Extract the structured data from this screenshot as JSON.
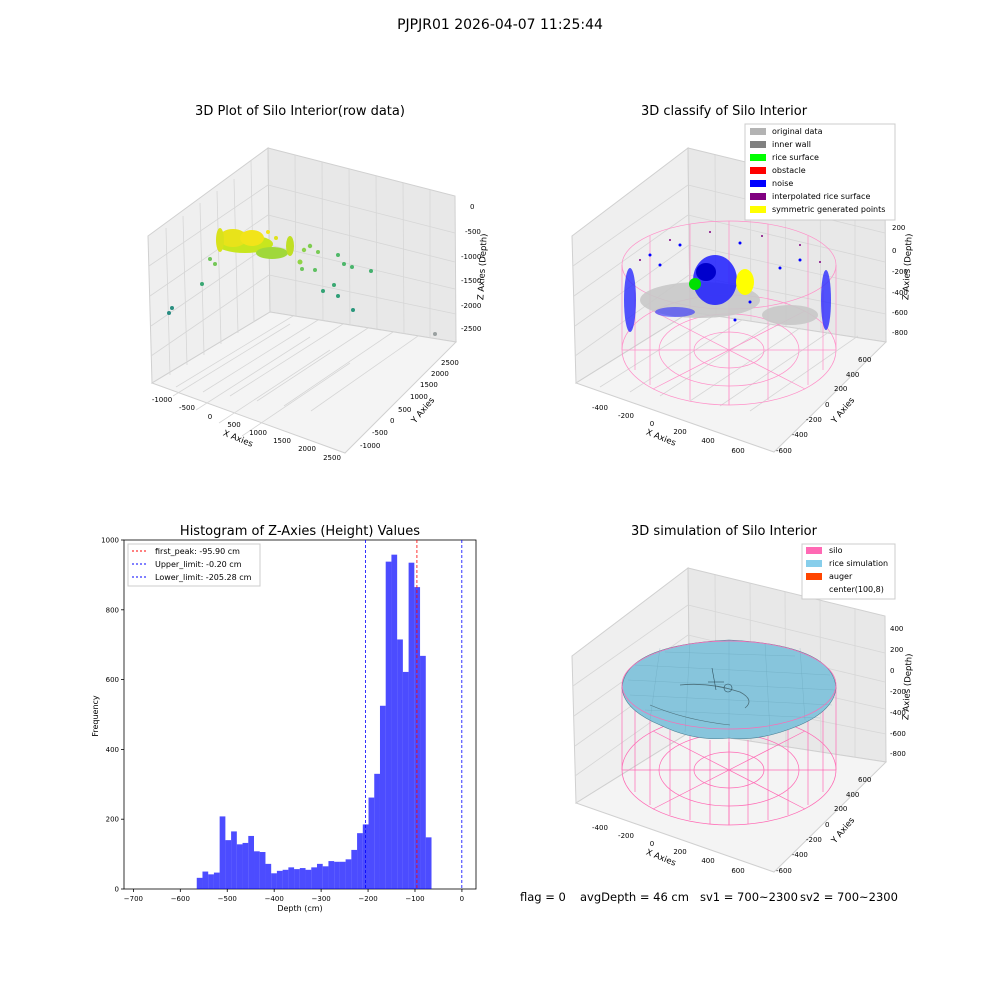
{
  "figure": {
    "suptitle": "PJPJR01 2026-04-07 11:25:44"
  },
  "panels": {
    "raw": {
      "title": "3D Plot of Silo Interior(row data)",
      "xlabel": "X Axies",
      "ylabel": "Y Axies",
      "zlabel": "Z Axies (Depth)",
      "x_ticks": [
        "-1000",
        "-500",
        "0",
        "500",
        "1000",
        "1500",
        "2000",
        "2500"
      ],
      "y_ticks": [
        "-1000",
        "-500",
        "0",
        "500",
        "1000",
        "1500",
        "2000",
        "2500"
      ],
      "z_ticks": [
        "0",
        "-500",
        "-1000",
        "-1500",
        "-2000",
        "-2500"
      ]
    },
    "classify": {
      "title": "3D classify of Silo Interior",
      "xlabel": "X Axies",
      "ylabel": "Y Axies",
      "zlabel": "Z Axies (Depth)",
      "x_ticks": [
        "-400",
        "-200",
        "0",
        "200",
        "400",
        "600"
      ],
      "y_ticks": [
        "-600",
        "-400",
        "-200",
        "0",
        "200",
        "400",
        "600"
      ],
      "z_ticks": [
        "200",
        "0",
        "-200",
        "-400",
        "-600",
        "-800"
      ],
      "legend": [
        {
          "label": "original data",
          "color": "#b3b3b3"
        },
        {
          "label": "inner wall",
          "color": "#808080"
        },
        {
          "label": "rice surface",
          "color": "#00ff00"
        },
        {
          "label": "obstacle",
          "color": "#ff0000"
        },
        {
          "label": "noise",
          "color": "#0000ff"
        },
        {
          "label": "interpolated rice surface",
          "color": "#800080"
        },
        {
          "label": "symmetric generated points",
          "color": "#ffff00"
        }
      ]
    },
    "simulation": {
      "title": "3D simulation of Silo Interior",
      "xlabel": "X Axies",
      "ylabel": "Y Axies",
      "zlabel": "Z Axies (Depth)",
      "x_ticks": [
        "-400",
        "-200",
        "0",
        "200",
        "400",
        "600"
      ],
      "y_ticks": [
        "-600",
        "-400",
        "-200",
        "0",
        "200",
        "400",
        "600"
      ],
      "z_ticks": [
        "400",
        "200",
        "0",
        "-200",
        "-400",
        "-600",
        "-800"
      ],
      "legend": [
        {
          "label": "silo",
          "color": "#ff69b4"
        },
        {
          "label": "rice simulation",
          "color": "#87ceeb"
        },
        {
          "label": "auger",
          "color": "#ff4500"
        },
        {
          "label": "center(100,8)",
          "color": "#ffffff"
        }
      ]
    }
  },
  "chart_data": {
    "type": "bar",
    "title": "Histogram of Z-Axies (Height) Values",
    "xlabel": "Depth (cm)",
    "ylabel": "Frequency",
    "xlim": [
      -720,
      30
    ],
    "ylim": [
      0,
      1000
    ],
    "x_ticks": [
      -700,
      -600,
      -500,
      -400,
      -300,
      -200,
      -100,
      0
    ],
    "y_ticks": [
      0,
      200,
      400,
      600,
      800,
      1000
    ],
    "bar_color": "#0000ff",
    "bin_start": -565,
    "bin_width": 12.2,
    "values": [
      32,
      50,
      42,
      47,
      208,
      140,
      165,
      128,
      132,
      152,
      108,
      106,
      72,
      45,
      52,
      55,
      62,
      57,
      60,
      55,
      62,
      72,
      65,
      80,
      78,
      78,
      85,
      112,
      160,
      185,
      262,
      330,
      525,
      938,
      958,
      715,
      622,
      935,
      865,
      668,
      148
    ],
    "vlines": [
      {
        "x": -95.9,
        "label": "first_peak: -95.90 cm",
        "color": "#ff0000"
      },
      {
        "x": -0.2,
        "label": "Upper_limit: -0.20 cm",
        "color": "#0000ff"
      },
      {
        "x": -205.28,
        "label": "Lower_limit: -205.28 cm",
        "color": "#0000ff"
      }
    ],
    "legend_position": "top-left"
  },
  "footer": {
    "flag": "flag = 0",
    "avg_depth": "avgDepth = 46 cm",
    "sv1": "sv1 = 700~2300",
    "sv2": "sv2 = 700~2300"
  }
}
